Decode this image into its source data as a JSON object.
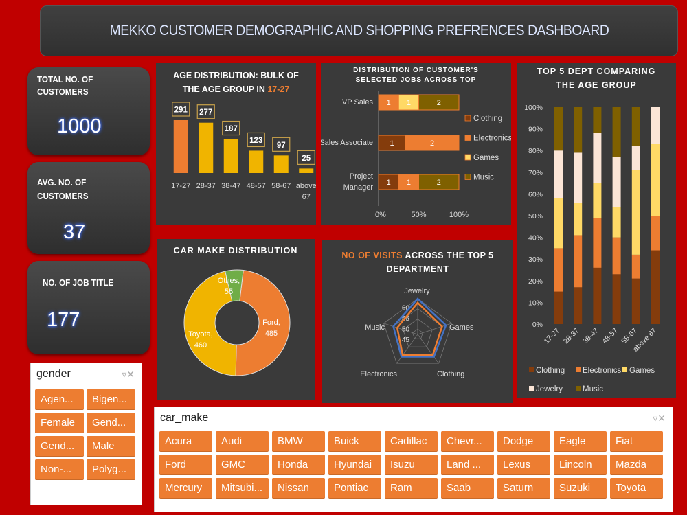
{
  "header": {
    "title": "MEKKO CUSTOMER DEMOGRAPHIC AND SHOPPING PREFRENCES DASHBOARD"
  },
  "kpis": {
    "total_customers": {
      "label1": "TOTAL NO. OF",
      "label2": "CUSTOMERS",
      "value": "1000"
    },
    "avg_customers": {
      "label": "AVG. NO. OF CUSTOMERS",
      "value": "37"
    },
    "job_titles": {
      "label": "NO. OF JOB  TITLE",
      "value": "177"
    }
  },
  "panels": {
    "age": {
      "title1": "AGE DISTRIBUTION: BULK OF",
      "title2": "THE AGE GROUP IN ",
      "title2_highlight": "17-27"
    },
    "jobs": {
      "title1": "DISTRIBUTION OF CUSTOMER'S",
      "title2": "SELECTED JOBS ACROSS TOP"
    },
    "dept": {
      "title1": "TOP 5 DEPT COMPARING",
      "title2": "THE AGE GROUP"
    },
    "car": {
      "title": "CAR MAKE DISTRIBUTION"
    },
    "visits": {
      "title1_highlight": "NO OF VISITS",
      "title1_rest": " ACROSS THE TOP 5",
      "title2": "DEPARTMENT"
    }
  },
  "slicers": {
    "gender": {
      "title": "gender",
      "items": [
        "Agen...",
        "Bigen...",
        "Female",
        "Gend...",
        "Gend...",
        "Male",
        "Non-...",
        "Polyg..."
      ]
    },
    "car_make": {
      "title": "car_make",
      "items": [
        "Acura",
        "Audi",
        "BMW",
        "Buick",
        "Cadillac",
        "Chevr...",
        "Dodge",
        "Eagle",
        "Fiat",
        "Ford",
        "GMC",
        "Honda",
        "Hyundai",
        "Isuzu",
        "Land ...",
        "Lexus",
        "Lincoln",
        "Mazda",
        "Mercury",
        "Mitsubi...",
        "Nissan",
        "Pontiac",
        "Ram",
        "Saab",
        "Saturn",
        "Suzuki",
        "Toyota"
      ]
    }
  },
  "chart_data": [
    {
      "type": "bar",
      "title": "AGE DISTRIBUTION: BULK OF THE AGE GROUP IN 17-27",
      "categories": [
        "17-27",
        "28-37",
        "38-47",
        "48-57",
        "58-67",
        "above 67"
      ],
      "values": [
        291,
        277,
        187,
        123,
        97,
        25
      ],
      "colors": [
        "#ed7d31",
        "#f0b400",
        "#f0b400",
        "#f0b400",
        "#f0b400",
        "#f0b400"
      ]
    },
    {
      "type": "bar",
      "orientation": "horizontal-100%-stacked",
      "title": "DISTRIBUTION OF CUSTOMER'S SELECTED JOBS ACROSS TOP",
      "categories": [
        "VP Sales",
        "Sales Associate",
        "Project Manager"
      ],
      "series": [
        {
          "name": "Clothing",
          "values": [
            0,
            1,
            1
          ],
          "color": "#843c0c"
        },
        {
          "name": "Electronics",
          "values": [
            1,
            2,
            1
          ],
          "color": "#ed7d31"
        },
        {
          "name": "Games",
          "values": [
            1,
            0,
            0
          ],
          "color": "#ffd966"
        },
        {
          "name": "Music",
          "values": [
            2,
            0,
            2
          ],
          "color": "#7f6000"
        }
      ],
      "x_ticks": [
        "0%",
        "50%",
        "100%"
      ]
    },
    {
      "type": "bar",
      "orientation": "vertical-100%-stacked",
      "title": "TOP 5 DEPT COMPARING THE AGE GROUP",
      "categories": [
        "17-27",
        "28-37",
        "38-47",
        "48-57",
        "58-67",
        "above 67"
      ],
      "series": [
        {
          "name": "Clothing",
          "values": [
            15,
            17,
            26,
            23,
            21,
            34
          ],
          "color": "#843c0c"
        },
        {
          "name": "Electronics",
          "values": [
            20,
            24,
            23,
            17,
            11,
            16
          ],
          "color": "#ed7d31"
        },
        {
          "name": "Games",
          "values": [
            23,
            15,
            16,
            14,
            39,
            33
          ],
          "color": "#ffd966"
        },
        {
          "name": "Jewelry",
          "values": [
            22,
            23,
            23,
            23,
            11,
            17
          ],
          "color": "#fbe5d6"
        },
        {
          "name": "Music",
          "values": [
            20,
            21,
            12,
            23,
            18,
            0
          ],
          "color": "#7f6000"
        }
      ],
      "y_ticks": [
        "0%",
        "10%",
        "20%",
        "30%",
        "40%",
        "50%",
        "60%",
        "70%",
        "80%",
        "90%",
        "100%"
      ]
    },
    {
      "type": "pie",
      "title": "CAR MAKE DISTRIBUTION",
      "slices": [
        {
          "label": "Ford,",
          "value": 485,
          "color": "#ed7d31"
        },
        {
          "label": "Toyota,",
          "value": 460,
          "color": "#f0b400"
        },
        {
          "label": "Othes,",
          "value": 55,
          "color": "#70ad47"
        }
      ]
    },
    {
      "type": "radar",
      "title": "NO OF VISITS ACROSS THE TOP 5 DEPARTMENT",
      "axes": [
        "Jewelry",
        "Games",
        "Clothing",
        "Electronics",
        "Music"
      ],
      "ticks": [
        "45",
        "50",
        "55",
        "60"
      ],
      "series": [
        {
          "values": [
            60,
            57,
            56,
            56,
            55
          ],
          "color": "#4472c4"
        },
        {
          "values": [
            58,
            55,
            55,
            55,
            53
          ],
          "color": "#ed7d31"
        }
      ]
    }
  ]
}
